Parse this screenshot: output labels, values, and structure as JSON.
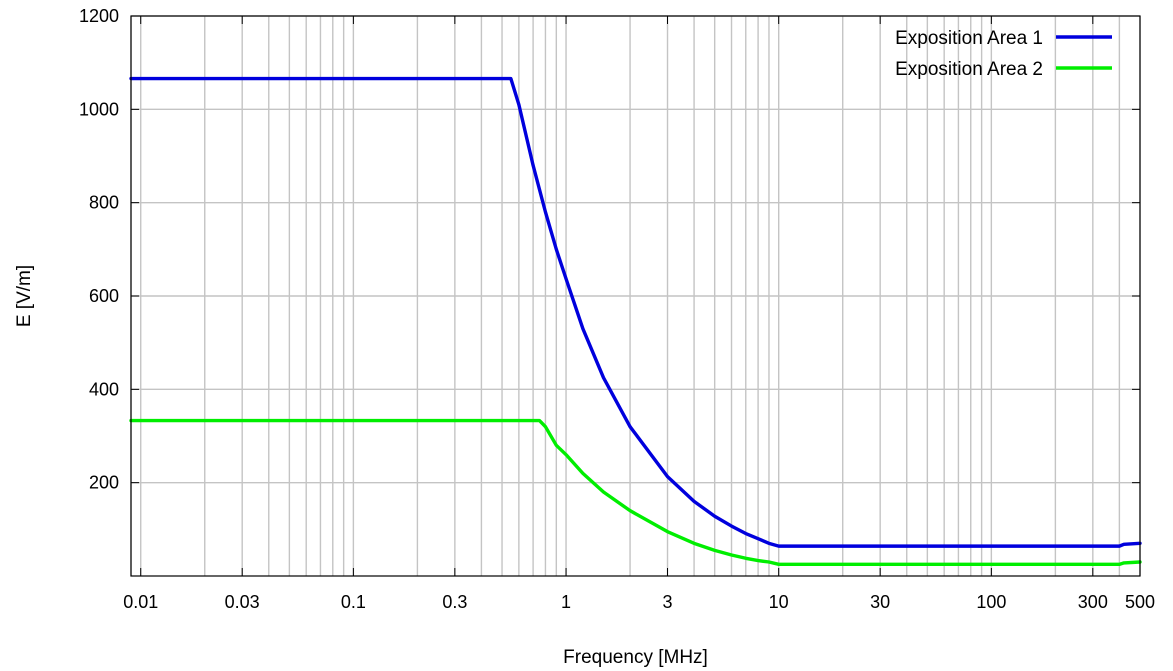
{
  "chart_data": {
    "type": "line",
    "xlabel": "Frequency [MHz]",
    "ylabel": "E [V/m]",
    "x_scale": "log",
    "xlim": [
      0.009,
      500
    ],
    "ylim": [
      0,
      1200
    ],
    "x_ticks": [
      {
        "value": 0.01,
        "label": "0.01"
      },
      {
        "value": 0.03,
        "label": "0.03"
      },
      {
        "value": 0.1,
        "label": "0.1"
      },
      {
        "value": 0.3,
        "label": "0.3"
      },
      {
        "value": 1,
        "label": "1"
      },
      {
        "value": 3,
        "label": "3"
      },
      {
        "value": 10,
        "label": "10"
      },
      {
        "value": 30,
        "label": "30"
      },
      {
        "value": 100,
        "label": "100"
      },
      {
        "value": 300,
        "label": "300"
      },
      {
        "value": 500,
        "label": "500"
      }
    ],
    "y_ticks": [
      {
        "value": 200,
        "label": "200"
      },
      {
        "value": 400,
        "label": "400"
      },
      {
        "value": 600,
        "label": "600"
      },
      {
        "value": 800,
        "label": "800"
      },
      {
        "value": 1000,
        "label": "1000"
      },
      {
        "value": 1200,
        "label": "1200"
      }
    ],
    "grid": true,
    "legend_position": "top-right",
    "series": [
      {
        "name": "Exposition Area 1",
        "color": "#0000dd",
        "points": [
          [
            0.009,
            1066
          ],
          [
            0.55,
            1066
          ],
          [
            0.6,
            1010
          ],
          [
            0.7,
            880
          ],
          [
            0.8,
            780
          ],
          [
            0.9,
            700
          ],
          [
            1,
            637
          ],
          [
            1.2,
            530
          ],
          [
            1.5,
            425
          ],
          [
            2,
            320
          ],
          [
            3,
            213
          ],
          [
            4,
            160
          ],
          [
            5,
            128
          ],
          [
            6,
            107
          ],
          [
            7,
            91
          ],
          [
            8,
            80
          ],
          [
            9,
            70
          ],
          [
            10,
            64
          ],
          [
            20,
            64
          ],
          [
            100,
            64
          ],
          [
            400,
            64
          ],
          [
            420,
            68
          ],
          [
            500,
            70
          ]
        ]
      },
      {
        "name": "Exposition Area 2",
        "color": "#00ee00",
        "points": [
          [
            0.009,
            333
          ],
          [
            0.75,
            333
          ],
          [
            0.8,
            320
          ],
          [
            0.9,
            280
          ],
          [
            1,
            260
          ],
          [
            1.2,
            220
          ],
          [
            1.5,
            180
          ],
          [
            2,
            140
          ],
          [
            3,
            95
          ],
          [
            4,
            70
          ],
          [
            5,
            55
          ],
          [
            6,
            45
          ],
          [
            7,
            38
          ],
          [
            8,
            33
          ],
          [
            9,
            30
          ],
          [
            10,
            25
          ],
          [
            100,
            25
          ],
          [
            400,
            25
          ],
          [
            420,
            28
          ],
          [
            500,
            30
          ]
        ]
      }
    ]
  }
}
